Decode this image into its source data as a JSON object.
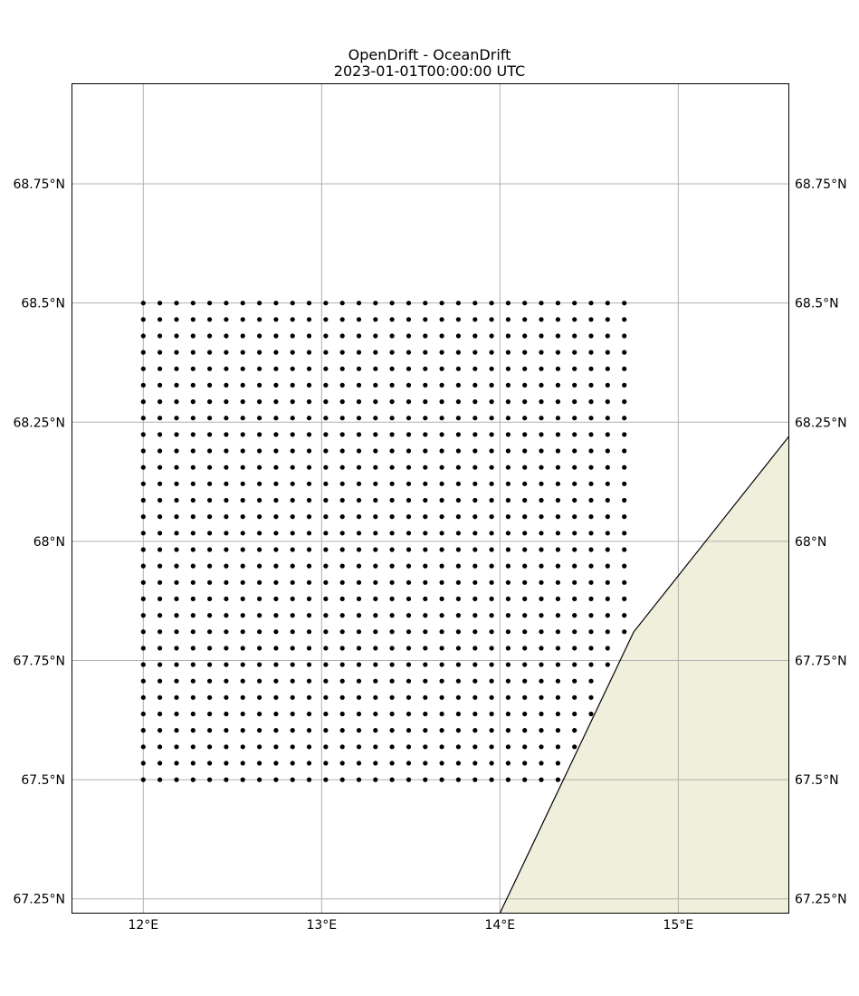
{
  "title": "OpenDrift - OceanDrift",
  "subtitle": "2023-01-01T00:00:00 UTC",
  "map": {
    "lon_range": [
      11.6,
      15.62
    ],
    "lat_range": [
      67.22,
      68.96
    ],
    "gridlines": true,
    "land_color": "#efefdb",
    "coast_color": "#000000",
    "gridline_color": "#b0b0b0",
    "particle_color": "#000000"
  },
  "lon_ticks": [
    {
      "value": 12,
      "label": "12°E"
    },
    {
      "value": 13,
      "label": "13°E"
    },
    {
      "value": 14,
      "label": "14°E"
    },
    {
      "value": 15,
      "label": "15°E"
    }
  ],
  "lat_ticks": [
    {
      "value": 68.75,
      "label": "68.75°N"
    },
    {
      "value": 68.5,
      "label": "68.5°N"
    },
    {
      "value": 68.25,
      "label": "68.25°N"
    },
    {
      "value": 68.0,
      "label": "68°N"
    },
    {
      "value": 67.75,
      "label": "67.75°N"
    },
    {
      "value": 67.5,
      "label": "67.5°N"
    },
    {
      "value": 67.25,
      "label": "67.25°N"
    }
  ],
  "chart_data": {
    "type": "scatter",
    "title": "OpenDrift - OceanDrift",
    "subtitle": "2023-01-01T00:00:00 UTC",
    "particle_grid": {
      "lon_start": 12.0,
      "lon_end": 14.7,
      "lon_step": 0.093,
      "lat_start": 67.5,
      "lat_end": 68.5,
      "lat_step": 0.0345,
      "excluded": "points on land east of the coastline"
    },
    "coastline": [
      [
        14.0,
        67.22
      ],
      [
        14.75,
        67.81
      ],
      [
        15.62,
        68.22
      ]
    ],
    "xlim": [
      11.6,
      15.62
    ],
    "ylim": [
      67.22,
      68.96
    ]
  }
}
